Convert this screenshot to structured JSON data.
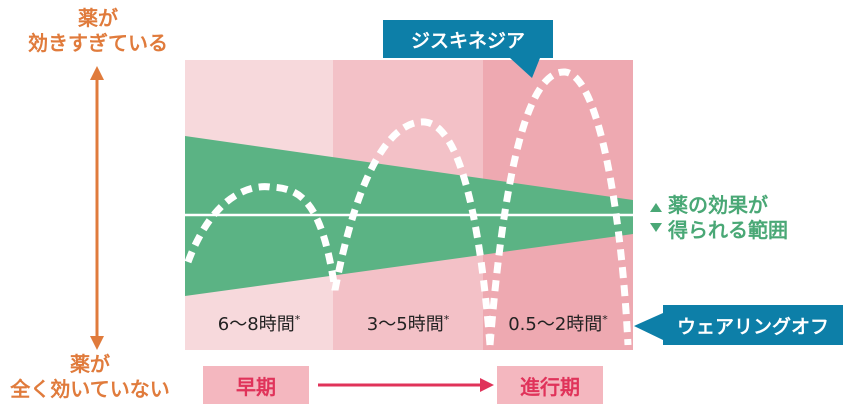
{
  "axis": {
    "top_line1": "薬が",
    "top_line2": "効きすぎている",
    "bottom_line1": "薬が",
    "bottom_line2": "全く効いていない"
  },
  "effective_range": {
    "line1": "薬の効果が",
    "line2": "得られる範囲"
  },
  "callouts": {
    "dyskinesia": "ジスキネジア",
    "wearing_off": "ウェアリングオフ"
  },
  "periods": [
    {
      "label": "6〜8時間",
      "mark": "*"
    },
    {
      "label": "3〜5時間",
      "mark": "*"
    },
    {
      "label": "0.5〜2時間",
      "mark": "*"
    }
  ],
  "stages": {
    "early": "早期",
    "advanced": "進行期"
  },
  "colors": {
    "axis_orange": "#e07b3c",
    "band_green": "#5bb384",
    "callout_blue": "#0d7fa8",
    "stage_pink": "#e0335a",
    "bg_col1": "#f7d9dc",
    "bg_col2": "#f3c1c7",
    "bg_col3": "#eea9b1"
  }
}
